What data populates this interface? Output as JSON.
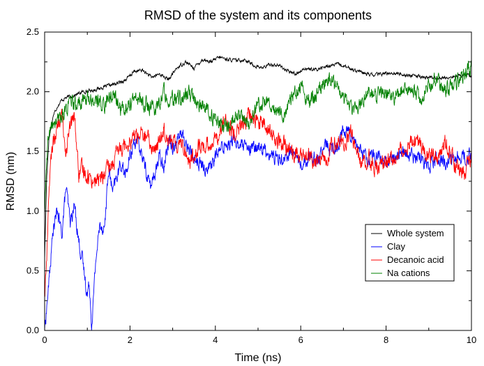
{
  "chart_data": {
    "type": "line",
    "title": "RMSD of the system and its components",
    "xlabel": "Time (ns)",
    "ylabel": "RMSD (nm)",
    "xlim": [
      0,
      10
    ],
    "ylim": [
      0,
      2.5
    ],
    "x_ticks": [
      0,
      2,
      4,
      6,
      8,
      10
    ],
    "x_tick_labels": [
      "0",
      "2",
      "4",
      "6",
      "8",
      "10"
    ],
    "y_ticks": [
      0,
      0.5,
      1.0,
      1.5,
      2.0,
      2.5
    ],
    "y_tick_labels": [
      "0.0",
      "0.5",
      "1.0",
      "1.5",
      "2.0",
      "2.5"
    ],
    "grid": false,
    "legend_position": "lower-right",
    "series": [
      {
        "name": "Whole system",
        "color": "#000000",
        "x": [
          0,
          0.05,
          0.1,
          0.2,
          0.3,
          0.4,
          0.5,
          0.7,
          0.9,
          1.1,
          1.3,
          1.5,
          1.7,
          1.9,
          2.1,
          2.3,
          2.5,
          2.7,
          2.9,
          3.1,
          3.3,
          3.5,
          3.7,
          3.9,
          4.1,
          4.3,
          4.5,
          4.7,
          4.9,
          5.1,
          5.3,
          5.5,
          5.7,
          5.9,
          6.1,
          6.3,
          6.5,
          6.7,
          6.9,
          7.1,
          7.3,
          7.5,
          7.7,
          7.9,
          8.1,
          8.3,
          8.5,
          8.7,
          8.9,
          9.1,
          9.3,
          9.5,
          9.7,
          9.9,
          10
        ],
        "y": [
          0.6,
          1.3,
          1.6,
          1.8,
          1.88,
          1.93,
          1.95,
          1.97,
          2.0,
          2.01,
          2.03,
          2.05,
          2.07,
          2.1,
          2.17,
          2.18,
          2.12,
          2.15,
          2.1,
          2.2,
          2.25,
          2.2,
          2.27,
          2.25,
          2.29,
          2.27,
          2.26,
          2.27,
          2.22,
          2.2,
          2.23,
          2.22,
          2.17,
          2.15,
          2.2,
          2.18,
          2.2,
          2.22,
          2.23,
          2.2,
          2.18,
          2.15,
          2.14,
          2.15,
          2.16,
          2.15,
          2.14,
          2.13,
          2.12,
          2.12,
          2.11,
          2.12,
          2.13,
          2.14,
          2.13
        ]
      },
      {
        "name": "Clay",
        "color": "#0000ff",
        "x": [
          0,
          0.1,
          0.2,
          0.3,
          0.4,
          0.5,
          0.6,
          0.7,
          0.8,
          0.9,
          1.0,
          1.05,
          1.1,
          1.15,
          1.2,
          1.3,
          1.4,
          1.5,
          1.6,
          1.7,
          1.8,
          1.9,
          2.0,
          2.1,
          2.2,
          2.3,
          2.4,
          2.5,
          2.6,
          2.7,
          2.8,
          2.9,
          3.0,
          3.2,
          3.4,
          3.6,
          3.8,
          4.0,
          4.2,
          4.4,
          4.6,
          4.8,
          5.0,
          5.2,
          5.4,
          5.6,
          5.8,
          6.0,
          6.2,
          6.4,
          6.6,
          6.8,
          7.0,
          7.2,
          7.4,
          7.6,
          7.8,
          8.0,
          8.2,
          8.4,
          8.6,
          8.8,
          9.0,
          9.2,
          9.4,
          9.6,
          9.8,
          10
        ],
        "y": [
          0.0,
          0.4,
          0.85,
          1.0,
          0.8,
          1.2,
          0.9,
          1.05,
          0.75,
          0.55,
          0.3,
          0.4,
          0.05,
          0.3,
          0.6,
          0.9,
          0.85,
          1.35,
          1.15,
          1.3,
          1.4,
          1.3,
          1.45,
          1.6,
          1.55,
          1.45,
          1.3,
          1.2,
          1.35,
          1.45,
          1.4,
          1.6,
          1.55,
          1.65,
          1.5,
          1.4,
          1.35,
          1.45,
          1.55,
          1.6,
          1.55,
          1.5,
          1.55,
          1.5,
          1.45,
          1.45,
          1.5,
          1.4,
          1.45,
          1.45,
          1.55,
          1.5,
          1.7,
          1.65,
          1.5,
          1.45,
          1.45,
          1.4,
          1.45,
          1.5,
          1.45,
          1.45,
          1.4,
          1.45,
          1.4,
          1.45,
          1.45,
          1.45
        ]
      },
      {
        "name": "Decanoic acid",
        "color": "#ff0000",
        "x": [
          0,
          0.05,
          0.1,
          0.2,
          0.3,
          0.4,
          0.5,
          0.6,
          0.7,
          0.8,
          0.9,
          1.0,
          1.2,
          1.4,
          1.6,
          1.8,
          2.0,
          2.2,
          2.4,
          2.6,
          2.8,
          3.0,
          3.2,
          3.4,
          3.6,
          3.8,
          4.0,
          4.2,
          4.4,
          4.6,
          4.8,
          5.0,
          5.2,
          5.4,
          5.6,
          5.8,
          6.0,
          6.2,
          6.4,
          6.6,
          6.8,
          7.0,
          7.2,
          7.4,
          7.6,
          7.8,
          8.0,
          8.2,
          8.4,
          8.6,
          8.8,
          9.0,
          9.2,
          9.4,
          9.6,
          9.8,
          10
        ],
        "y": [
          0.3,
          0.6,
          1.2,
          1.6,
          1.7,
          1.8,
          1.5,
          1.7,
          1.8,
          1.3,
          1.35,
          1.3,
          1.25,
          1.3,
          1.4,
          1.55,
          1.6,
          1.65,
          1.6,
          1.5,
          1.7,
          1.55,
          1.6,
          1.4,
          1.55,
          1.55,
          1.6,
          1.75,
          1.65,
          1.7,
          1.8,
          1.75,
          1.7,
          1.6,
          1.55,
          1.5,
          1.45,
          1.45,
          1.4,
          1.45,
          1.6,
          1.55,
          1.65,
          1.4,
          1.45,
          1.35,
          1.4,
          1.45,
          1.55,
          1.6,
          1.55,
          1.5,
          1.45,
          1.6,
          1.4,
          1.3,
          1.45
        ]
      },
      {
        "name": "Na cations",
        "color": "#008000",
        "x": [
          0,
          0.05,
          0.1,
          0.2,
          0.3,
          0.4,
          0.5,
          0.6,
          0.7,
          0.8,
          1.0,
          1.2,
          1.4,
          1.6,
          1.8,
          2.0,
          2.2,
          2.4,
          2.6,
          2.8,
          3.0,
          3.2,
          3.4,
          3.6,
          3.8,
          4.0,
          4.2,
          4.4,
          4.6,
          4.8,
          5.0,
          5.2,
          5.4,
          5.6,
          5.8,
          6.0,
          6.2,
          6.4,
          6.6,
          6.8,
          7.0,
          7.2,
          7.4,
          7.6,
          7.8,
          8.0,
          8.2,
          8.4,
          8.6,
          8.8,
          9.0,
          9.2,
          9.4,
          9.6,
          9.8,
          10
        ],
        "y": [
          1.0,
          1.4,
          1.65,
          1.72,
          1.75,
          1.8,
          1.85,
          1.9,
          1.88,
          1.9,
          1.95,
          1.92,
          1.9,
          1.98,
          1.85,
          1.9,
          1.95,
          1.88,
          1.85,
          2.0,
          1.92,
          1.95,
          1.98,
          1.9,
          1.85,
          1.75,
          1.7,
          1.75,
          1.8,
          1.72,
          1.9,
          1.95,
          1.85,
          1.8,
          1.95,
          2.05,
          1.9,
          2.0,
          2.1,
          2.05,
          1.95,
          1.85,
          1.9,
          2.0,
          1.95,
          2.0,
          1.95,
          2.05,
          2.0,
          1.95,
          2.05,
          2.1,
          2.0,
          2.05,
          2.15,
          2.2
        ]
      }
    ]
  }
}
